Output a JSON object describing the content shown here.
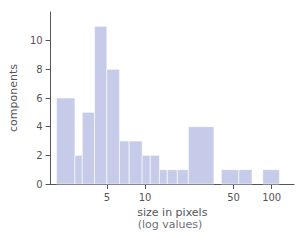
{
  "chart_data": {
    "type": "bar",
    "title": "",
    "xlabel": "size in pixels",
    "annotations": [
      {
        "text": "(log values)"
      }
    ],
    "ylabel": "components",
    "color": "#c5cbe8",
    "left": [
      2.0,
      2.8,
      3.2,
      4.0,
      5.0,
      6.3,
      7.5,
      9.5,
      11.0,
      13.0,
      15.0,
      18.0,
      22.0,
      40.0,
      55.0,
      85.0
    ],
    "right": [
      2.8,
      3.2,
      4.0,
      5.0,
      6.3,
      7.5,
      9.5,
      11.0,
      13.0,
      15.0,
      18.0,
      22.0,
      35.0,
      55.0,
      70.0,
      115.0
    ],
    "values": [
      6,
      2,
      5,
      11,
      8,
      3,
      3,
      2,
      2,
      1,
      1,
      1,
      4,
      1,
      1,
      1
    ],
    "log": "x",
    "xlim": [
      1.8,
      150
    ],
    "xticks": [
      5,
      10,
      50,
      100
    ],
    "ylim": [
      0,
      12
    ],
    "yticks": [
      0,
      2,
      4,
      6,
      8,
      10
    ],
    "grid": false
  }
}
